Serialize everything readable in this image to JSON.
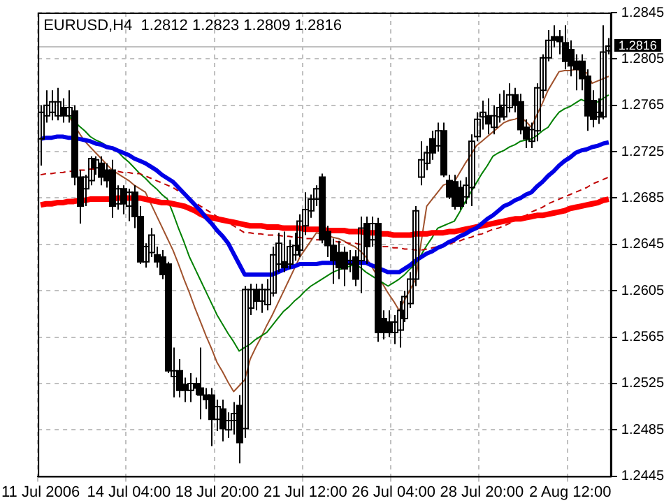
{
  "chart_data": {
    "type": "candlestick",
    "title": "EURUSD,H4  1.2812 1.2823 1.2809 1.2816",
    "categories": [
      "11 Jul 2006",
      null,
      null,
      null,
      null,
      null,
      null,
      null,
      null,
      null,
      null,
      null,
      null,
      null,
      null,
      null,
      "14 Jul 04:00",
      null,
      null,
      null,
      null,
      null,
      null,
      null,
      null,
      null,
      null,
      null,
      null,
      null,
      null,
      null,
      "18 Jul 20:00",
      null,
      null,
      null,
      null,
      null,
      null,
      null,
      null,
      null,
      null,
      null,
      null,
      null,
      null,
      null,
      "21 Jul 12:00",
      null,
      null,
      null,
      null,
      null,
      null,
      null,
      null,
      null,
      null,
      null,
      null,
      null,
      null,
      null,
      "26 Jul 04:00",
      null,
      null,
      null,
      null,
      null,
      null,
      null,
      null,
      null,
      null,
      null,
      null,
      null,
      null,
      null,
      "28 Jul 20:00",
      null,
      null,
      null,
      null,
      null,
      null,
      null,
      null,
      null,
      null,
      null,
      null,
      null,
      null,
      null,
      "2 Aug 12:00",
      null,
      null,
      null,
      null,
      null,
      null,
      null
    ],
    "color": "#000000",
    "ohlc": [
      [
        1.2736,
        1.2765,
        1.2713,
        1.2759
      ],
      [
        1.2756,
        1.2778,
        1.275,
        1.2765
      ],
      [
        1.2759,
        1.2778,
        1.2752,
        1.2768
      ],
      [
        1.2756,
        1.278,
        1.2752,
        1.2768
      ],
      [
        1.2763,
        1.2771,
        1.275,
        1.2756
      ],
      [
        1.2756,
        1.2778,
        1.275,
        1.2763
      ],
      [
        1.276,
        1.2765,
        1.2696,
        1.2703
      ],
      [
        1.2703,
        1.2709,
        1.2663,
        1.2678
      ],
      [
        1.2693,
        1.2705,
        1.2678,
        1.2703
      ],
      [
        1.27,
        1.2721,
        1.2696,
        1.2719
      ],
      [
        1.2711,
        1.2721,
        1.2705,
        1.2718
      ],
      [
        1.2715,
        1.2721,
        1.2696,
        1.2703
      ],
      [
        1.2709,
        1.2715,
        1.2694,
        1.27
      ],
      [
        1.2709,
        1.2718,
        1.2668,
        1.2678
      ],
      [
        1.268,
        1.2696,
        1.2675,
        1.2693
      ],
      [
        1.2693,
        1.2696,
        1.2671,
        1.268
      ],
      [
        1.2678,
        1.2693,
        1.2665,
        1.269
      ],
      [
        1.269,
        1.2696,
        1.2659,
        1.2669
      ],
      [
        1.2669,
        1.2678,
        1.2628,
        1.263
      ],
      [
        1.263,
        1.2646,
        1.2625,
        1.2643
      ],
      [
        1.2638,
        1.2659,
        1.2634,
        1.2653
      ],
      [
        1.2636,
        1.2643,
        1.2625,
        1.263
      ],
      [
        1.2634,
        1.264,
        1.2615,
        1.2619
      ],
      [
        1.2628,
        1.263,
        1.2534,
        1.2536
      ],
      [
        1.2531,
        1.2556,
        1.2513,
        1.2536
      ],
      [
        1.2536,
        1.2546,
        1.2513,
        1.2519
      ],
      [
        1.2524,
        1.253,
        1.2509,
        1.2519
      ],
      [
        1.2519,
        1.2534,
        1.2509,
        1.2525
      ],
      [
        1.2525,
        1.253,
        1.2515,
        1.2521
      ],
      [
        1.2521,
        1.2556,
        1.2494,
        1.2515
      ],
      [
        1.2515,
        1.2521,
        1.2503,
        1.2511
      ],
      [
        1.2515,
        1.2521,
        1.2471,
        1.2494
      ],
      [
        1.2494,
        1.2511,
        1.2484,
        1.2505
      ],
      [
        1.2503,
        1.2511,
        1.2475,
        1.2486
      ],
      [
        1.2485,
        1.25,
        1.2478,
        1.2493
      ],
      [
        1.2493,
        1.2509,
        1.2481,
        1.2499
      ],
      [
        1.2506,
        1.2515,
        1.2456,
        1.2474
      ],
      [
        1.2486,
        1.2609,
        1.2478,
        1.2606
      ],
      [
        1.259,
        1.2611,
        1.2584,
        1.2606
      ],
      [
        1.2606,
        1.2611,
        1.2588,
        1.2596
      ],
      [
        1.2596,
        1.2611,
        1.2586,
        1.2606
      ],
      [
        1.2593,
        1.2615,
        1.2588,
        1.2606
      ],
      [
        1.2603,
        1.2643,
        1.26,
        1.2636
      ],
      [
        1.2628,
        1.2655,
        1.2621,
        1.2646
      ],
      [
        1.263,
        1.2656,
        1.2621,
        1.2625
      ],
      [
        1.2628,
        1.2649,
        1.2624,
        1.2643
      ],
      [
        1.2636,
        1.2655,
        1.2631,
        1.2644
      ],
      [
        1.264,
        1.2671,
        1.2634,
        1.2665
      ],
      [
        1.2661,
        1.269,
        1.2653,
        1.2675
      ],
      [
        1.2674,
        1.2688,
        1.2668,
        1.2684
      ],
      [
        1.2684,
        1.2696,
        1.2678,
        1.2693
      ],
      [
        1.2703,
        1.2706,
        1.2646,
        1.2649
      ],
      [
        1.2656,
        1.2661,
        1.2634,
        1.2644
      ],
      [
        1.2644,
        1.265,
        1.2611,
        1.2631
      ],
      [
        1.2638,
        1.2648,
        1.2615,
        1.2625
      ],
      [
        1.2638,
        1.2643,
        1.2609,
        1.2624
      ],
      [
        1.2628,
        1.264,
        1.2621,
        1.2631
      ],
      [
        1.2634,
        1.264,
        1.2609,
        1.2615
      ],
      [
        1.2631,
        1.2669,
        1.2603,
        1.2659
      ],
      [
        1.2663,
        1.2669,
        1.2628,
        1.2643
      ],
      [
        1.2649,
        1.2669,
        1.2643,
        1.2663
      ],
      [
        1.2663,
        1.2668,
        1.2561,
        1.2569
      ],
      [
        1.2581,
        1.2588,
        1.2563,
        1.2569
      ],
      [
        1.2578,
        1.2588,
        1.2565,
        1.2569
      ],
      [
        1.2569,
        1.2584,
        1.2559,
        1.2578
      ],
      [
        1.2571,
        1.2596,
        1.2556,
        1.2588
      ],
      [
        1.2581,
        1.2605,
        1.2578,
        1.26
      ],
      [
        1.2594,
        1.2621,
        1.259,
        1.2615
      ],
      [
        1.2615,
        1.2678,
        1.2609,
        1.2674
      ],
      [
        1.2703,
        1.2734,
        1.2696,
        1.2718
      ],
      [
        1.2715,
        1.273,
        1.2709,
        1.2724
      ],
      [
        1.2736,
        1.2743,
        1.2718,
        1.2724
      ],
      [
        1.273,
        1.275,
        1.2725,
        1.2743
      ],
      [
        1.2743,
        1.275,
        1.2703,
        1.2705
      ],
      [
        1.27,
        1.2705,
        1.2684,
        1.2686
      ],
      [
        1.2699,
        1.2705,
        1.2675,
        1.2678
      ],
      [
        1.2694,
        1.27,
        1.2675,
        1.2678
      ],
      [
        1.2686,
        1.2703,
        1.268,
        1.2696
      ],
      [
        1.2694,
        1.274,
        1.2678,
        1.2734
      ],
      [
        1.2738,
        1.2759,
        1.2734,
        1.2753
      ],
      [
        1.2755,
        1.2769,
        1.2744,
        1.2759
      ],
      [
        1.2756,
        1.2771,
        1.274,
        1.2749
      ],
      [
        1.2746,
        1.2765,
        1.274,
        1.2756
      ],
      [
        1.2755,
        1.2775,
        1.275,
        1.2763
      ],
      [
        1.2755,
        1.2778,
        1.2752,
        1.2765
      ],
      [
        1.2763,
        1.2784,
        1.2759,
        1.2774
      ],
      [
        1.2774,
        1.278,
        1.2759,
        1.2765
      ],
      [
        1.2768,
        1.2775,
        1.274,
        1.2744
      ],
      [
        1.2746,
        1.2753,
        1.2728,
        1.2736
      ],
      [
        1.2734,
        1.275,
        1.2728,
        1.2744
      ],
      [
        1.2743,
        1.2784,
        1.2734,
        1.278
      ],
      [
        1.2778,
        1.2809,
        1.2771,
        1.2806
      ],
      [
        1.2806,
        1.283,
        1.2803,
        1.2821
      ],
      [
        1.2824,
        1.2834,
        1.2815,
        1.2821
      ],
      [
        1.2824,
        1.283,
        1.2809,
        1.282
      ],
      [
        1.2819,
        1.2834,
        1.2796,
        1.2803
      ],
      [
        1.2813,
        1.2821,
        1.279,
        1.2799
      ],
      [
        1.2803,
        1.2809,
        1.2778,
        1.2796
      ],
      [
        1.2803,
        1.2809,
        1.2778,
        1.2788
      ],
      [
        1.279,
        1.2796,
        1.2743,
        1.2756
      ],
      [
        1.2769,
        1.2778,
        1.2746,
        1.2753
      ],
      [
        1.2755,
        1.2771,
        1.2749,
        1.2759
      ],
      [
        1.2755,
        1.2834,
        1.2753,
        1.2811
      ],
      [
        1.2812,
        1.2823,
        1.2809,
        1.2816
      ]
    ],
    "series": [
      {
        "type": "line",
        "color": "#0000e6",
        "values": [
          1.2736,
          1.2737,
          1.2737,
          1.2738,
          1.2738,
          1.2737,
          1.2737,
          1.2736,
          1.2735,
          1.2734,
          1.2732,
          1.2731,
          1.2729,
          1.2728,
          1.2726,
          1.2724,
          1.2722,
          1.2719,
          1.2717,
          1.2715,
          1.2712,
          1.2709,
          1.2705,
          1.2702,
          1.2699,
          1.2694,
          1.2689,
          1.2684,
          1.2679,
          1.2674,
          1.2668,
          1.2663,
          1.2657,
          1.2652,
          1.2646,
          1.2637,
          1.2628,
          1.2619,
          1.2619,
          1.2619,
          1.2619,
          1.2619,
          1.2619,
          1.2621,
          1.2623,
          1.2625,
          1.2626,
          1.2628,
          1.2628,
          1.2628,
          1.2628,
          1.2629,
          1.2629,
          1.2629,
          1.2629,
          1.263,
          1.263,
          1.263,
          1.2629,
          1.2629,
          1.2627,
          1.2625,
          1.2623,
          1.2621,
          1.2621,
          1.2621,
          1.2624,
          1.2627,
          1.2631,
          1.2634,
          1.2637,
          1.2639,
          1.2642,
          1.2644,
          1.2647,
          1.2649,
          1.2652,
          1.2654,
          1.2657,
          1.2659,
          1.2663,
          1.2667,
          1.267,
          1.2674,
          1.2678,
          1.268,
          1.2683,
          1.2685,
          1.2688,
          1.269,
          1.2695,
          1.2699,
          1.2704,
          1.2708,
          1.2713,
          1.2717,
          1.272,
          1.2724,
          1.2726,
          1.2727,
          1.2729,
          1.273,
          1.2732,
          1.2733
        ]
      },
      {
        "type": "line",
        "color": "#ff0000",
        "values": [
          1.2679,
          1.268,
          1.268,
          1.2681,
          1.2681,
          1.2682,
          1.2682,
          1.2683,
          1.2683,
          1.2684,
          1.2684,
          1.2684,
          1.2684,
          1.2684,
          1.2685,
          1.2685,
          1.2685,
          1.2685,
          1.2685,
          1.2684,
          1.2683,
          1.2682,
          1.2681,
          1.2681,
          1.268,
          1.2679,
          1.2678,
          1.2676,
          1.2674,
          1.2671,
          1.2669,
          1.2668,
          1.2667,
          1.2666,
          1.2665,
          1.2664,
          1.2663,
          1.2662,
          1.2661,
          1.2661,
          1.2661,
          1.266,
          1.266,
          1.266,
          1.2659,
          1.2659,
          1.2659,
          1.2659,
          1.2658,
          1.2658,
          1.2658,
          1.2658,
          1.2657,
          1.2657,
          1.2657,
          1.2657,
          1.2656,
          1.2656,
          1.2656,
          1.2655,
          1.2655,
          1.2655,
          1.2654,
          1.2654,
          1.2653,
          1.2653,
          1.2653,
          1.2653,
          1.2654,
          1.2654,
          1.2654,
          1.2655,
          1.2655,
          1.2655,
          1.2656,
          1.2656,
          1.2657,
          1.2658,
          1.2659,
          1.266,
          1.2661,
          1.2662,
          1.2663,
          1.2664,
          1.2665,
          1.2666,
          1.2667,
          1.2667,
          1.2668,
          1.2669,
          1.267,
          1.267,
          1.2671,
          1.2672,
          1.2673,
          1.2674,
          1.2676,
          1.2677,
          1.2678,
          1.2679,
          1.268,
          1.2681,
          1.2683,
          1.2684
        ]
      },
      {
        "type": "line",
        "color": "#c00000",
        "line_style": "dashed",
        "values": [
          1.2705,
          1.2706,
          1.2706,
          1.2707,
          1.2707,
          1.2708,
          1.2708,
          1.2709,
          1.2709,
          1.271,
          1.271,
          1.2709,
          1.2709,
          null,
          1.2708,
          1.2707,
          1.2707,
          1.2706,
          1.2706,
          1.2704,
          1.2702,
          1.27,
          1.2698,
          1.2696,
          1.2694,
          1.2691,
          1.2688,
          1.2684,
          1.2681,
          1.2678,
          1.2675,
          1.2672,
          1.2669,
          1.2667,
          1.2664,
          1.2661,
          1.2658,
          1.2655,
          1.2655,
          1.2654,
          1.2654,
          1.2653,
          1.2653,
          1.2653,
          1.2652,
          1.2652,
          1.2651,
          1.2651,
          1.265,
          1.265,
          1.2649,
          1.2649,
          1.2648,
          1.2648,
          1.2647,
          1.2647,
          1.2646,
          1.2646,
          1.2645,
          null,
          null,
          null,
          1.2643,
          1.2643,
          1.2642,
          1.2642,
          1.2641,
          1.2641,
          1.264,
          1.264,
          1.2641,
          1.2642,
          1.2643,
          1.2644,
          1.2645,
          1.2647,
          1.2648,
          1.265,
          1.2651,
          1.2653,
          1.2654,
          1.2656,
          1.2658,
          1.2659,
          1.2661,
          1.2663,
          1.2666,
          1.2668,
          1.267,
          1.2673,
          1.2675,
          1.2677,
          1.268,
          1.2682,
          1.2684,
          1.2686,
          1.2688,
          1.269,
          1.2692,
          1.2694,
          1.2697,
          1.2699,
          1.2701,
          1.2703
        ]
      },
      {
        "type": "line",
        "color": "#008000",
        "values": [
          null,
          null,
          null,
          null,
          null,
          1.2756,
          1.2752,
          1.2747,
          1.2743,
          1.2738,
          1.2735,
          1.2733,
          1.273,
          1.2728,
          1.2725,
          1.272,
          1.2716,
          1.2711,
          1.2706,
          1.2702,
          1.2697,
          1.2693,
          1.2688,
          1.2684,
          1.2672,
          1.2659,
          1.2647,
          1.2634,
          1.2624,
          1.2614,
          1.2604,
          1.2594,
          1.2584,
          1.2576,
          1.2568,
          1.2561,
          1.2553,
          1.2556,
          1.2559,
          1.2563,
          1.2566,
          1.2569,
          1.2575,
          1.2581,
          1.2587,
          1.2591,
          1.2596,
          1.26,
          1.2605,
          1.2609,
          1.2612,
          1.2615,
          1.2618,
          1.2621,
          1.2623,
          1.2625,
          1.2626,
          1.2628,
          1.2625,
          1.2621,
          1.2618,
          1.2615,
          1.2612,
          1.2609,
          1.2612,
          1.2615,
          1.2619,
          1.2624,
          1.2628,
          1.2636,
          1.2644,
          1.2651,
          1.2659,
          1.2661,
          1.2663,
          1.2665,
          1.2673,
          1.2682,
          1.269,
          1.2698,
          1.2706,
          1.2713,
          1.2721,
          1.2724,
          1.2726,
          1.2729,
          1.2731,
          1.2734,
          1.2735,
          1.2736,
          1.2739,
          1.2743,
          1.2746,
          1.2753,
          1.2759,
          1.2762,
          1.2764,
          1.2767,
          1.277,
          1.2768,
          1.2765,
          1.2768,
          1.2771,
          1.2774
        ]
      },
      {
        "type": "line",
        "color": "#a0522d",
        "values": [
          null,
          null,
          null,
          null,
          null,
          1.2756,
          1.2749,
          1.2741,
          1.2734,
          1.2729,
          1.2724,
          1.2719,
          1.2714,
          1.2709,
          1.2706,
          1.2703,
          1.27,
          1.2696,
          1.2693,
          1.269,
          1.268,
          1.267,
          1.266,
          1.265,
          1.264,
          1.2628,
          1.2615,
          1.2603,
          1.259,
          1.2578,
          1.2566,
          1.2555,
          1.2543,
          1.2535,
          1.2526,
          1.2518,
          1.2523,
          1.2528,
          1.2546,
          1.2556,
          1.2565,
          1.2575,
          1.2584,
          1.2594,
          1.2604,
          1.2614,
          1.2624,
          1.2634,
          1.2641,
          1.2648,
          1.2655,
          1.2654,
          1.2653,
          1.2651,
          1.265,
          1.2648,
          1.2645,
          1.2643,
          1.2639,
          1.2634,
          1.2626,
          1.2618,
          1.2611,
          1.2603,
          1.2596,
          1.2588,
          1.2597,
          1.2606,
          1.2615,
          1.2647,
          1.2678,
          1.2684,
          1.269,
          1.2696,
          1.2698,
          1.2699,
          1.2707,
          1.2715,
          1.2722,
          1.273,
          1.2734,
          1.2738,
          1.2742,
          1.2746,
          1.275,
          1.2752,
          1.2753,
          1.2755,
          1.2751,
          1.2746,
          1.2757,
          1.2767,
          1.2778,
          1.2786,
          1.2794,
          1.2795,
          1.2795,
          1.2796,
          1.2795,
          1.2793,
          1.2784,
          1.2786,
          1.2788,
          1.279
        ]
      }
    ],
    "ylim": [
      1.2445,
      1.2845
    ],
    "yticks": [
      1.2445,
      1.2485,
      1.2525,
      1.2565,
      1.2605,
      1.2645,
      1.2685,
      1.2725,
      1.2765,
      1.2805,
      1.2845
    ],
    "ref_lines": [
      {
        "axis": "y",
        "value": 1.2816,
        "label": "1.2816",
        "color": "#c0c0c0"
      }
    ],
    "grid": true,
    "legend": false,
    "marker": "none"
  }
}
